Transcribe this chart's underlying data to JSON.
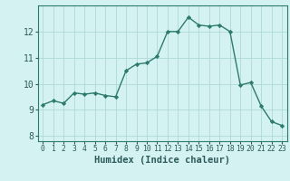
{
  "x": [
    0,
    1,
    2,
    3,
    4,
    5,
    6,
    7,
    8,
    9,
    10,
    11,
    12,
    13,
    14,
    15,
    16,
    17,
    18,
    19,
    20,
    21,
    22,
    23
  ],
  "y": [
    9.2,
    9.35,
    9.25,
    9.65,
    9.6,
    9.65,
    9.55,
    9.5,
    10.5,
    10.75,
    10.8,
    11.05,
    12.0,
    12.0,
    12.55,
    12.25,
    12.2,
    12.25,
    12.0,
    9.95,
    10.05,
    9.15,
    8.55,
    8.4
  ],
  "line_color": "#2d7a6e",
  "marker": "D",
  "marker_size": 2.2,
  "bg_color": "#d4f2f2",
  "grid_color": "#aed8d8",
  "xlabel": "Humidex (Indice chaleur)",
  "ylim": [
    7.8,
    13.0
  ],
  "xlim": [
    -0.5,
    23.5
  ],
  "yticks": [
    8,
    9,
    10,
    11,
    12
  ],
  "xticks": [
    0,
    1,
    2,
    3,
    4,
    5,
    6,
    7,
    8,
    9,
    10,
    11,
    12,
    13,
    14,
    15,
    16,
    17,
    18,
    19,
    20,
    21,
    22,
    23
  ],
  "xlabel_fontsize": 7.5,
  "ytick_fontsize": 7,
  "xtick_fontsize": 5.8,
  "line_width": 1.0,
  "spine_color": "#2d7a6e",
  "tick_color": "#2d5a5a",
  "label_color": "#2d5a5a"
}
